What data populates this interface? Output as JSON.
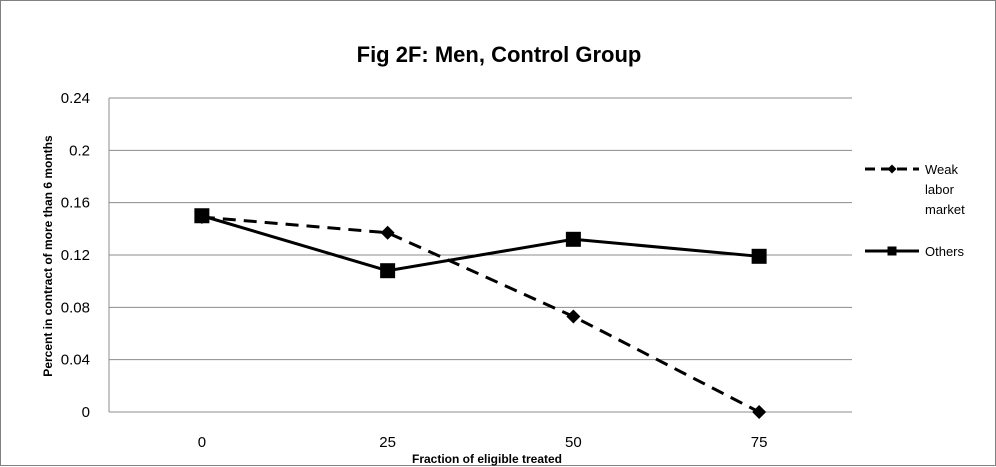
{
  "chart_data": {
    "type": "line",
    "title": "Fig 2F: Men, Control Group",
    "xlabel": "Fraction of eligible treated",
    "ylabel": "Percent in contract of more than 6 months",
    "categories": [
      "0",
      "25",
      "50",
      "75"
    ],
    "y_ticks": [
      "0",
      "0.04",
      "0.08",
      "0.12",
      "0.16",
      "0.2",
      "0.24"
    ],
    "ylim": [
      0,
      0.24
    ],
    "grid": true,
    "legend_position": "right",
    "series": [
      {
        "name": "Weak labor market",
        "legend_lines": [
          "Weak",
          "labor",
          "market"
        ],
        "values": [
          0.149,
          0.137,
          0.073,
          0.0
        ],
        "line_style": "dashed",
        "marker": "diamond",
        "color": "#000000"
      },
      {
        "name": "Others",
        "legend_lines": [
          "Others"
        ],
        "values": [
          0.15,
          0.108,
          0.132,
          0.119
        ],
        "line_style": "solid",
        "marker": "square",
        "color": "#000000"
      }
    ]
  }
}
